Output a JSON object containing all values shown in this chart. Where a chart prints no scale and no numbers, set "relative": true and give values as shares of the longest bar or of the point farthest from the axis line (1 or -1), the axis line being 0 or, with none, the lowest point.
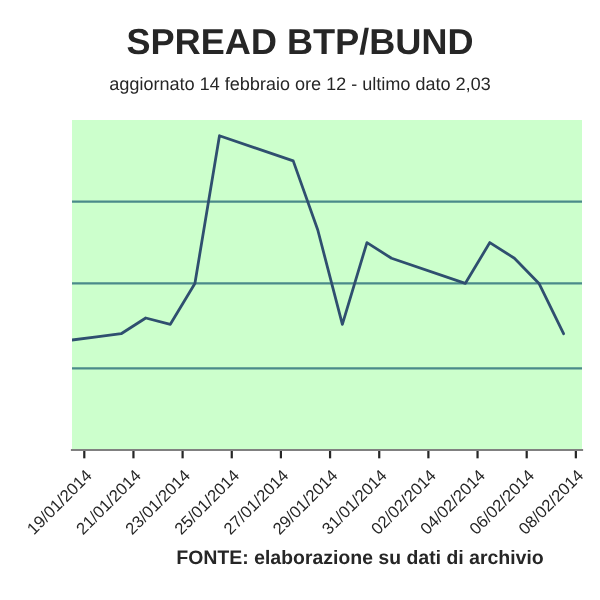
{
  "chart_data": {
    "type": "line",
    "title": "SPREAD BTP/BUND",
    "subtitle": "aggiornato 14 febbraio ore 12 - ultimo dato 2,03",
    "relative": true,
    "x": [
      "2014-01-18T12:00",
      "2014-01-19T12:00",
      "2014-01-20T12:00",
      "2014-01-21T12:00",
      "2014-01-22T12:00",
      "2014-01-23T12:00",
      "2014-01-24T12:00",
      "2014-01-27T12:00",
      "2014-01-28T12:00",
      "2014-01-29T12:00",
      "2014-01-30T12:00",
      "2014-01-31T12:00",
      "2014-02-03T12:00",
      "2014-02-04T12:00",
      "2014-02-05T12:00",
      "2014-02-06T12:00",
      "2014-02-07T12:00"
    ],
    "series": [
      {
        "color": "#2f4f6f",
        "values": [
          0.35,
          0.36,
          0.37,
          0.42,
          0.4,
          0.53,
          1.0,
          0.92,
          0.7,
          0.4,
          0.66,
          0.61,
          0.53,
          0.66,
          0.61,
          0.53,
          0.37
        ]
      }
    ],
    "xlim": [
      "2014-01-18T12:00",
      "2014-02-08T06:00"
    ],
    "xticks": [
      {
        "value": "2014-01-19",
        "label": "19/01/2014"
      },
      {
        "value": "2014-01-21",
        "label": "21/01/2014"
      },
      {
        "value": "2014-01-23",
        "label": "23/01/2014"
      },
      {
        "value": "2014-01-25",
        "label": "25/01/2014"
      },
      {
        "value": "2014-01-27",
        "label": "27/01/2014"
      },
      {
        "value": "2014-01-29",
        "label": "29/01/2014"
      },
      {
        "value": "2014-01-31",
        "label": "31/01/2014"
      },
      {
        "value": "2014-02-02",
        "label": "02/02/2014"
      },
      {
        "value": "2014-02-04",
        "label": "04/02/2014"
      },
      {
        "value": "2014-02-06",
        "label": "06/02/2014"
      },
      {
        "value": "2014-02-08",
        "label": "08/02/2014"
      }
    ],
    "ref_lines": [
      {
        "axis": "y",
        "value": 0.79,
        "color": "#4a8a8a"
      },
      {
        "axis": "y",
        "value": 0.53,
        "color": "#4a8a8a"
      },
      {
        "axis": "y",
        "value": 0.26,
        "color": "#4a8a8a"
      }
    ],
    "marker": "none",
    "line_style": "solid",
    "annotations": [
      "FONTE: elaborazione su dati di archivio"
    ]
  }
}
